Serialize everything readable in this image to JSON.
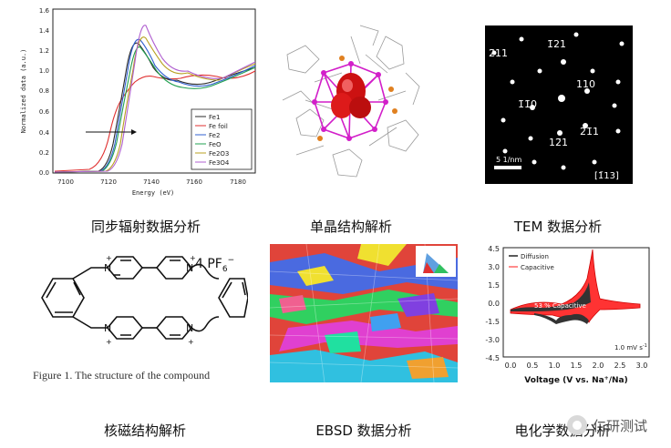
{
  "captions": {
    "xas": "同步辐射数据分析",
    "crystal": "单晶结构解析",
    "tem": "TEM 数据分析",
    "nmr": "核磁结构解析",
    "ebsd": "EBSD 数据分析",
    "echem": "电化学数据分析"
  },
  "watermark": "仁研测试",
  "xas": {
    "ylabel": "Normalized data (a.u.)",
    "xlabel": "Energy (eV)",
    "yticks": [
      "0.0",
      "0.2",
      "0.4",
      "0.6",
      "0.8",
      "1.0",
      "1.2",
      "1.4",
      "1.6"
    ],
    "xticks": [
      "7100",
      "7120",
      "7140",
      "7160",
      "7180"
    ],
    "legend": [
      "Fe1",
      "Fe foil",
      "Fe2",
      "FeO",
      "Fe2O3",
      "Fe3O4"
    ]
  },
  "tem": {
    "labels": [
      "2̄11",
      "1̄21",
      "110",
      "1̄1̄0",
      "12̄1",
      "21̄1"
    ],
    "scale": "5 1/nm",
    "zone": "[1̄13]"
  },
  "nmr": {
    "counterion": "4 PF",
    "sub": "6",
    "sup": "−",
    "caption": "Figure 1. The structure of the compound"
  },
  "echem": {
    "legend": [
      "Diffusion",
      "Capacitive"
    ],
    "annotation": "53 % Capacitive",
    "rate": "1.0 mV s",
    "rate_sup": "-1",
    "yticks": [
      "4.5",
      "3.0",
      "1.5",
      "0.0",
      "-1.5",
      "-3.0",
      "-4.5"
    ],
    "xticks": [
      "0.0",
      "0.5",
      "1.0",
      "1.5",
      "2.0",
      "2.5",
      "3.0"
    ],
    "xlabel": "Voltage (V vs. Na",
    "xlabel_tail": "/Na)"
  },
  "colors": {
    "magenta": "#d21fc9",
    "capacitive": "#ff3333",
    "diffusion": "#222222"
  }
}
